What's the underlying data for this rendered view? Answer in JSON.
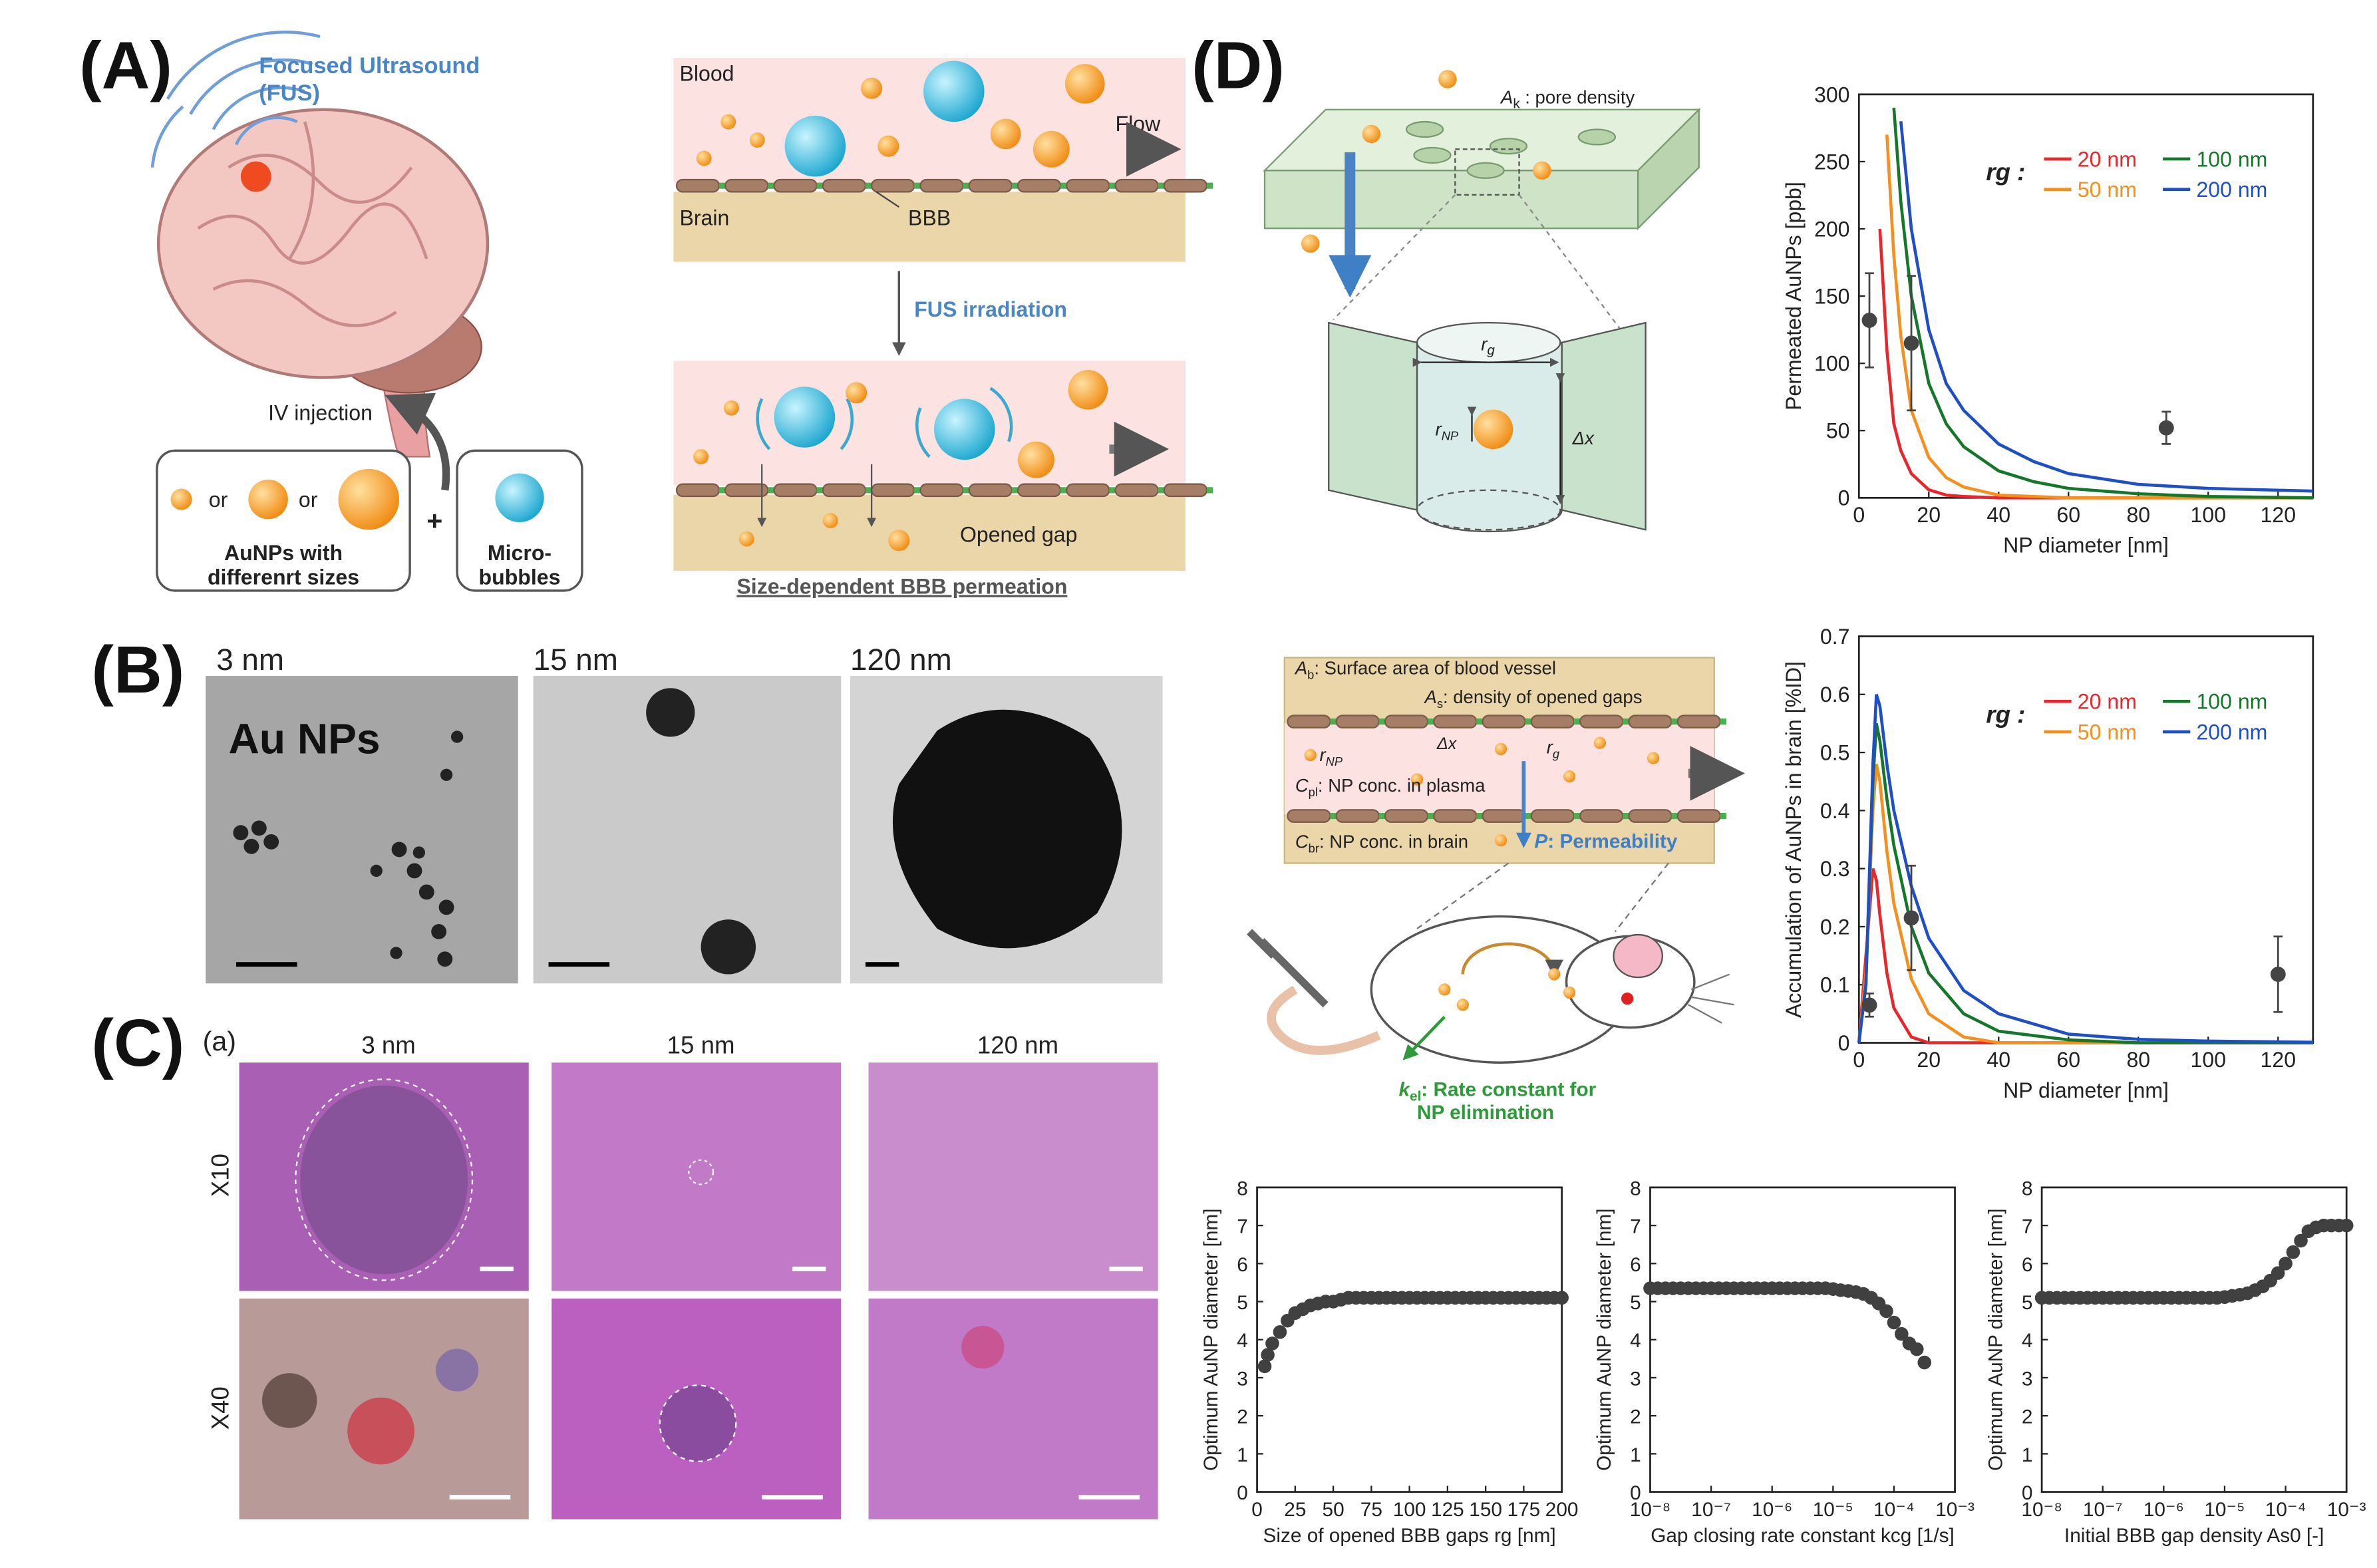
{
  "figure": {
    "panel_labels": [
      "(A)",
      "(B)",
      "(C)",
      "(D)"
    ],
    "A": {
      "fus": [
        "Focused Ultrasound",
        "(FUS)"
      ],
      "iv_injection": "IV injection",
      "or": "or",
      "aunps": [
        "AuNPs with",
        "differenrt sizes"
      ],
      "plus": "+",
      "microbubbles": [
        "Micro-",
        "bubbles"
      ],
      "blood": "Blood",
      "brain": "Brain",
      "bbb": "BBB",
      "flow": "Flow",
      "fus_irradiation": "FUS irradiation",
      "opened_gap": "Opened gap",
      "caption": "Size-dependent BBB permeation"
    },
    "B": {
      "sizes": [
        "3 nm",
        "15 nm",
        "120 nm"
      ],
      "label": "Au NPs"
    },
    "C": {
      "sub": "(a)",
      "sizes": [
        "3 nm",
        "15 nm",
        "120 nm"
      ],
      "rows": [
        "X10",
        "X40"
      ]
    },
    "D": {
      "pore_density": {
        "sym": "A",
        "sub": "k",
        "text": " : pore density"
      },
      "rg": {
        "sym": "r",
        "sub": "g"
      },
      "rnp": {
        "sym": "r",
        "sub": "NP"
      },
      "dx": "Δx",
      "ab": {
        "sym": "A",
        "sub": "b",
        "text": ": Surface area of blood vessel"
      },
      "as": {
        "sym": "A",
        "sub": "s",
        "text": ": density of opened gaps"
      },
      "cpl": {
        "sym": "C",
        "sub": "pl",
        "text": ": NP conc. in plasma"
      },
      "cbr": {
        "sym": "C",
        "sub": "br",
        "text": ": NP conc. in brain"
      },
      "p": {
        "sym": "P",
        "text": ": Permeability"
      },
      "kel": {
        "sym": "k",
        "sub": "el",
        "text": ": Rate constant for",
        "text2": "NP elimination"
      }
    }
  },
  "chart_data": [
    {
      "type": "line",
      "xlabel": "NP diameter [nm]",
      "ylabel": "Permeated AuNPs [ppb]",
      "legend_title": "rg :",
      "xlim": [
        0,
        130
      ],
      "xticks": [
        0,
        20,
        40,
        60,
        80,
        100,
        120
      ],
      "ylim": [
        0,
        300
      ],
      "yticks": [
        0,
        50,
        100,
        150,
        200,
        250,
        300
      ],
      "x": [
        2,
        4,
        6,
        8,
        10,
        12,
        15,
        20,
        25,
        30,
        40,
        50,
        60,
        80,
        100,
        130
      ],
      "series": [
        {
          "name": "20 nm",
          "color": "#e8262c",
          "values": [
            null,
            null,
            200,
            110,
            55,
            35,
            18,
            6,
            2,
            1,
            0,
            0,
            0,
            0,
            0,
            0
          ]
        },
        {
          "name": "50 nm",
          "color": "#f5901e",
          "values": [
            null,
            null,
            null,
            270,
            180,
            120,
            65,
            30,
            15,
            8,
            2,
            1,
            0,
            0,
            0,
            0
          ]
        },
        {
          "name": "100 nm",
          "color": "#15772a",
          "values": [
            null,
            null,
            null,
            null,
            290,
            220,
            150,
            85,
            55,
            38,
            20,
            12,
            7,
            3,
            1,
            0
          ]
        },
        {
          "name": "200 nm",
          "color": "#1f4fc4",
          "values": [
            null,
            null,
            null,
            null,
            null,
            280,
            200,
            125,
            85,
            65,
            40,
            27,
            18,
            10,
            7,
            5
          ]
        }
      ],
      "measured": {
        "color": "#444444",
        "x": [
          3,
          15,
          88
        ],
        "values": [
          132,
          115,
          52
        ],
        "errors": [
          35,
          50,
          12
        ]
      }
    },
    {
      "type": "line",
      "xlabel": "NP diameter [nm]",
      "ylabel": "Accumulation of AuNPs in brain [%ID]",
      "legend_title": "rg :",
      "xlim": [
        0,
        130
      ],
      "xticks": [
        0,
        20,
        40,
        60,
        80,
        100,
        120
      ],
      "ylim": [
        0,
        0.7
      ],
      "yticks": [
        0,
        0.1,
        0.2,
        0.3,
        0.4,
        0.5,
        0.6,
        0.7
      ],
      "x": [
        0,
        2,
        4,
        5,
        6,
        8,
        10,
        15,
        20,
        30,
        40,
        60,
        80,
        100,
        130
      ],
      "series": [
        {
          "name": "20 nm",
          "color": "#e8262c",
          "values": [
            0,
            0.15,
            0.3,
            0.28,
            0.22,
            0.12,
            0.06,
            0.01,
            0,
            0,
            0,
            0,
            0,
            0,
            0
          ]
        },
        {
          "name": "50 nm",
          "color": "#f5901e",
          "values": [
            0,
            0.12,
            0.4,
            0.48,
            0.45,
            0.33,
            0.24,
            0.11,
            0.05,
            0.01,
            0,
            0,
            0,
            0,
            0
          ]
        },
        {
          "name": "100 nm",
          "color": "#15772a",
          "values": [
            0,
            0.1,
            0.45,
            0.55,
            0.52,
            0.42,
            0.34,
            0.2,
            0.12,
            0.05,
            0.02,
            0.005,
            0,
            0,
            0
          ]
        },
        {
          "name": "200 nm",
          "color": "#1f4fc4",
          "values": [
            0,
            0.1,
            0.48,
            0.6,
            0.58,
            0.48,
            0.4,
            0.27,
            0.18,
            0.09,
            0.05,
            0.015,
            0.006,
            0.003,
            0.001
          ]
        }
      ],
      "measured": {
        "color": "#444444",
        "x": [
          3,
          15,
          120
        ],
        "values": [
          0.065,
          0.215,
          0.118
        ],
        "errors": [
          0.02,
          0.09,
          0.065
        ]
      }
    },
    {
      "type": "scatter",
      "xlabel": "Size of opened BBB gaps rg [nm]",
      "ylabel": "Optimum AuNP diameter [nm]",
      "color": "#404040",
      "xlim": [
        0,
        200
      ],
      "xticks": [
        0,
        25,
        50,
        75,
        100,
        125,
        150,
        175,
        200
      ],
      "ylim": [
        0,
        8
      ],
      "yticks": [
        0,
        1,
        2,
        3,
        4,
        5,
        6,
        7,
        8
      ],
      "x": [
        5,
        7,
        10,
        15,
        20,
        25,
        30,
        35,
        40,
        45,
        50,
        55,
        60,
        65,
        70,
        75,
        80,
        85,
        90,
        95,
        100,
        105,
        110,
        115,
        120,
        125,
        130,
        135,
        140,
        145,
        150,
        155,
        160,
        165,
        170,
        175,
        180,
        185,
        190,
        195,
        200
      ],
      "values": [
        3.3,
        3.6,
        3.9,
        4.2,
        4.5,
        4.7,
        4.8,
        4.9,
        4.95,
        5.0,
        5.0,
        5.05,
        5.1,
        5.1,
        5.1,
        5.1,
        5.1,
        5.1,
        5.1,
        5.1,
        5.1,
        5.1,
        5.1,
        5.1,
        5.1,
        5.1,
        5.1,
        5.1,
        5.1,
        5.1,
        5.1,
        5.1,
        5.1,
        5.1,
        5.1,
        5.1,
        5.1,
        5.1,
        5.1,
        5.1,
        5.1
      ]
    },
    {
      "type": "scatter",
      "xlabel": "Gap closing rate constant kcg [1/s]",
      "ylabel": "Optimum AuNP diameter [nm]",
      "color": "#404040",
      "xscale": "log",
      "xlim": [
        1e-08,
        0.001
      ],
      "xticks": [
        {
          "value": 1e-08,
          "label": "10⁻⁸"
        },
        {
          "value": 1e-07,
          "label": "10⁻⁷"
        },
        {
          "value": 1e-06,
          "label": "10⁻⁶"
        },
        {
          "value": 1e-05,
          "label": "10⁻⁵"
        },
        {
          "value": 0.0001,
          "label": "10⁻⁴"
        },
        {
          "value": 0.001,
          "label": "10⁻³"
        }
      ],
      "ylim": [
        0,
        8
      ],
      "yticks": [
        0,
        1,
        2,
        3,
        4,
        5,
        6,
        7,
        8
      ],
      "x": [
        1e-08,
        1.33e-08,
        1.78e-08,
        2.37e-08,
        3.16e-08,
        4.22e-08,
        5.62e-08,
        7.5e-08,
        1e-07,
        1.33e-07,
        1.78e-07,
        2.37e-07,
        3.16e-07,
        4.22e-07,
        5.62e-07,
        7.5e-07,
        1e-06,
        1.33e-06,
        1.78e-06,
        2.37e-06,
        3.16e-06,
        4.22e-06,
        5.62e-06,
        7.5e-06,
        1e-05,
        1.33e-05,
        1.78e-05,
        2.37e-05,
        3.16e-05,
        4.22e-05,
        5.62e-05,
        7.5e-05,
        0.0001,
        0.000133,
        0.000178,
        0.000237,
        0.000316
      ],
      "values": [
        5.35,
        5.35,
        5.35,
        5.35,
        5.35,
        5.35,
        5.35,
        5.35,
        5.35,
        5.35,
        5.35,
        5.35,
        5.35,
        5.35,
        5.35,
        5.35,
        5.35,
        5.35,
        5.35,
        5.35,
        5.35,
        5.35,
        5.35,
        5.35,
        5.33,
        5.3,
        5.28,
        5.25,
        5.2,
        5.1,
        4.95,
        4.75,
        4.45,
        4.15,
        3.9,
        3.75,
        3.4
      ]
    },
    {
      "type": "scatter",
      "xlabel": "Initial BBB gap density As0 [-]",
      "ylabel": "Optimum AuNP diameter [nm]",
      "color": "#404040",
      "xscale": "log",
      "xlim": [
        1e-08,
        0.001
      ],
      "xticks": [
        {
          "value": 1e-08,
          "label": "10⁻⁸"
        },
        {
          "value": 1e-07,
          "label": "10⁻⁷"
        },
        {
          "value": 1e-06,
          "label": "10⁻⁶"
        },
        {
          "value": 1e-05,
          "label": "10⁻⁵"
        },
        {
          "value": 0.0001,
          "label": "10⁻⁴"
        },
        {
          "value": 0.001,
          "label": "10⁻³"
        }
      ],
      "ylim": [
        0,
        8
      ],
      "yticks": [
        0,
        1,
        2,
        3,
        4,
        5,
        6,
        7,
        8
      ],
      "x": [
        1e-08,
        1.33e-08,
        1.78e-08,
        2.37e-08,
        3.16e-08,
        4.22e-08,
        5.62e-08,
        7.5e-08,
        1e-07,
        1.33e-07,
        1.78e-07,
        2.37e-07,
        3.16e-07,
        4.22e-07,
        5.62e-07,
        7.5e-07,
        1e-06,
        1.33e-06,
        1.78e-06,
        2.37e-06,
        3.16e-06,
        4.22e-06,
        5.62e-06,
        7.5e-06,
        1e-05,
        1.33e-05,
        1.78e-05,
        2.37e-05,
        3.16e-05,
        4.22e-05,
        5.62e-05,
        7.5e-05,
        0.0001,
        0.000133,
        0.000178,
        0.000237,
        0.000316,
        0.000422,
        0.000562,
        0.00075,
        0.001
      ],
      "values": [
        5.1,
        5.1,
        5.1,
        5.1,
        5.1,
        5.1,
        5.1,
        5.1,
        5.1,
        5.1,
        5.1,
        5.1,
        5.1,
        5.1,
        5.1,
        5.1,
        5.1,
        5.1,
        5.1,
        5.1,
        5.1,
        5.1,
        5.1,
        5.1,
        5.12,
        5.15,
        5.18,
        5.22,
        5.3,
        5.4,
        5.55,
        5.75,
        6.0,
        6.3,
        6.6,
        6.85,
        6.95,
        7.0,
        7.0,
        7.0,
        7.0
      ]
    }
  ]
}
